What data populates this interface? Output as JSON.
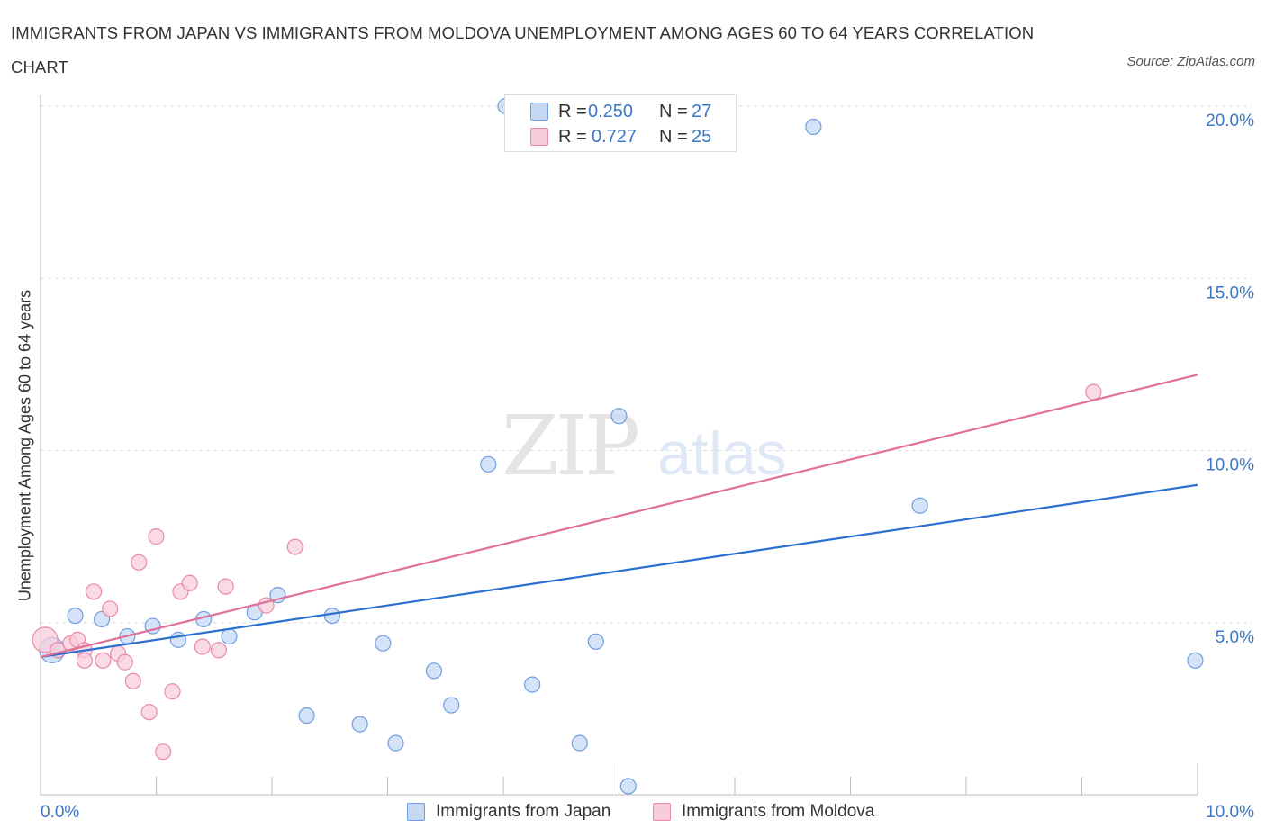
{
  "chart_data": {
    "type": "scatter",
    "title": "IMMIGRANTS FROM JAPAN VS IMMIGRANTS FROM MOLDOVA UNEMPLOYMENT AMONG AGES 60 TO 64 YEARS CORRELATION CHART",
    "source": "Source: ZipAtlas.com",
    "xlabel": "",
    "ylabel": "Unemployment Among Ages 60 to 64 years",
    "xlim": [
      0,
      10
    ],
    "ylim": [
      0,
      20
    ],
    "x_tick_labels": [
      "0.0%",
      "10.0%"
    ],
    "y_tick_labels": [
      "20.0%",
      "15.0%",
      "10.0%",
      "5.0%"
    ],
    "y_ticks": [
      20,
      15,
      10,
      5
    ],
    "watermark": [
      "ZIP",
      "atlas"
    ],
    "legend_stats": [
      {
        "r_label": "R =",
        "r_value": "0.250",
        "n_label": "N =",
        "n_value": "27"
      },
      {
        "r_label": "R =",
        "r_value": "0.727",
        "n_label": "N =",
        "n_value": "25"
      }
    ],
    "series": [
      {
        "name": "Immigrants from Japan",
        "color": "#6f9de0",
        "fill": "#c5d9f5",
        "trend": {
          "x": [
            0,
            10
          ],
          "y": [
            4.0,
            9.0
          ],
          "color": "#2b6fd0"
        },
        "points": [
          {
            "x": 0.1,
            "y": 4.2,
            "big": true
          },
          {
            "x": 0.3,
            "y": 5.2
          },
          {
            "x": 0.53,
            "y": 5.1
          },
          {
            "x": 0.75,
            "y": 4.6
          },
          {
            "x": 0.97,
            "y": 4.9
          },
          {
            "x": 1.19,
            "y": 4.5
          },
          {
            "x": 1.41,
            "y": 5.1
          },
          {
            "x": 1.63,
            "y": 4.6
          },
          {
            "x": 1.85,
            "y": 5.3
          },
          {
            "x": 2.05,
            "y": 5.8
          },
          {
            "x": 2.3,
            "y": 2.3
          },
          {
            "x": 2.52,
            "y": 5.2
          },
          {
            "x": 2.76,
            "y": 2.05
          },
          {
            "x": 2.96,
            "y": 4.4
          },
          {
            "x": 3.07,
            "y": 1.5
          },
          {
            "x": 3.4,
            "y": 3.6
          },
          {
            "x": 3.55,
            "y": 2.6
          },
          {
            "x": 3.87,
            "y": 9.6
          },
          {
            "x": 4.02,
            "y": 20.0
          },
          {
            "x": 4.25,
            "y": 3.2
          },
          {
            "x": 4.66,
            "y": 1.5
          },
          {
            "x": 4.8,
            "y": 4.45
          },
          {
            "x": 5.0,
            "y": 11.0
          },
          {
            "x": 5.08,
            "y": 0.25
          },
          {
            "x": 6.68,
            "y": 19.4
          },
          {
            "x": 7.6,
            "y": 8.4
          },
          {
            "x": 9.98,
            "y": 3.9
          }
        ]
      },
      {
        "name": "Immigrants from Moldova",
        "color": "#e88aa8",
        "fill": "#f8cdd9",
        "trend": {
          "x": [
            0,
            10
          ],
          "y": [
            4.0,
            12.2
          ],
          "color": "#e0709a"
        },
        "points": [
          {
            "x": 0.04,
            "y": 4.5,
            "big": true
          },
          {
            "x": 0.15,
            "y": 4.2
          },
          {
            "x": 0.26,
            "y": 4.4
          },
          {
            "x": 0.32,
            "y": 4.5
          },
          {
            "x": 0.38,
            "y": 4.2
          },
          {
            "x": 0.38,
            "y": 3.9
          },
          {
            "x": 0.46,
            "y": 5.9
          },
          {
            "x": 0.54,
            "y": 3.9
          },
          {
            "x": 0.6,
            "y": 5.4
          },
          {
            "x": 0.67,
            "y": 4.1
          },
          {
            "x": 0.73,
            "y": 3.85
          },
          {
            "x": 0.8,
            "y": 3.3
          },
          {
            "x": 0.85,
            "y": 6.75
          },
          {
            "x": 0.94,
            "y": 2.4
          },
          {
            "x": 1.0,
            "y": 7.5
          },
          {
            "x": 1.06,
            "y": 1.25
          },
          {
            "x": 1.14,
            "y": 3.0
          },
          {
            "x": 1.21,
            "y": 5.9
          },
          {
            "x": 1.29,
            "y": 6.15
          },
          {
            "x": 1.4,
            "y": 4.3
          },
          {
            "x": 1.54,
            "y": 4.2
          },
          {
            "x": 1.6,
            "y": 6.05
          },
          {
            "x": 1.95,
            "y": 5.5
          },
          {
            "x": 2.2,
            "y": 7.2
          },
          {
            "x": 9.1,
            "y": 11.7
          }
        ]
      }
    ]
  }
}
